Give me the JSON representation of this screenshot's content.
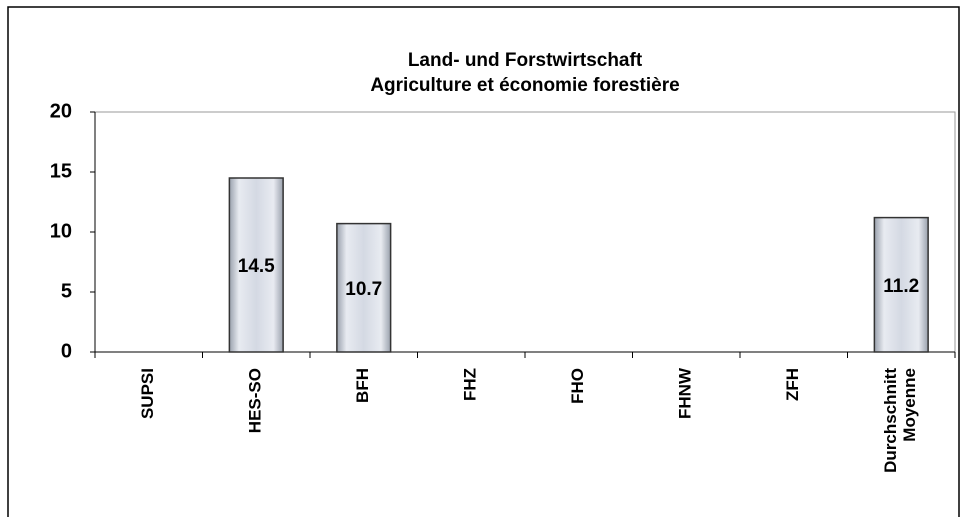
{
  "chart_data": {
    "type": "bar",
    "title": [
      "Land- und Forstwirtschaft",
      "Agriculture et économie forestière"
    ],
    "categories": [
      "SUPSI",
      "HES-SO",
      "BFH",
      "FHZ",
      "FHO",
      "FHNW",
      "ZFH",
      "Durchschnitt\nMoyenne"
    ],
    "values": [
      null,
      14.5,
      10.7,
      null,
      null,
      null,
      null,
      11.2
    ],
    "color": "#d4d9e3",
    "ylim": [
      0,
      20
    ],
    "yticks": [
      0,
      5,
      10,
      15,
      20
    ],
    "grid": false
  }
}
